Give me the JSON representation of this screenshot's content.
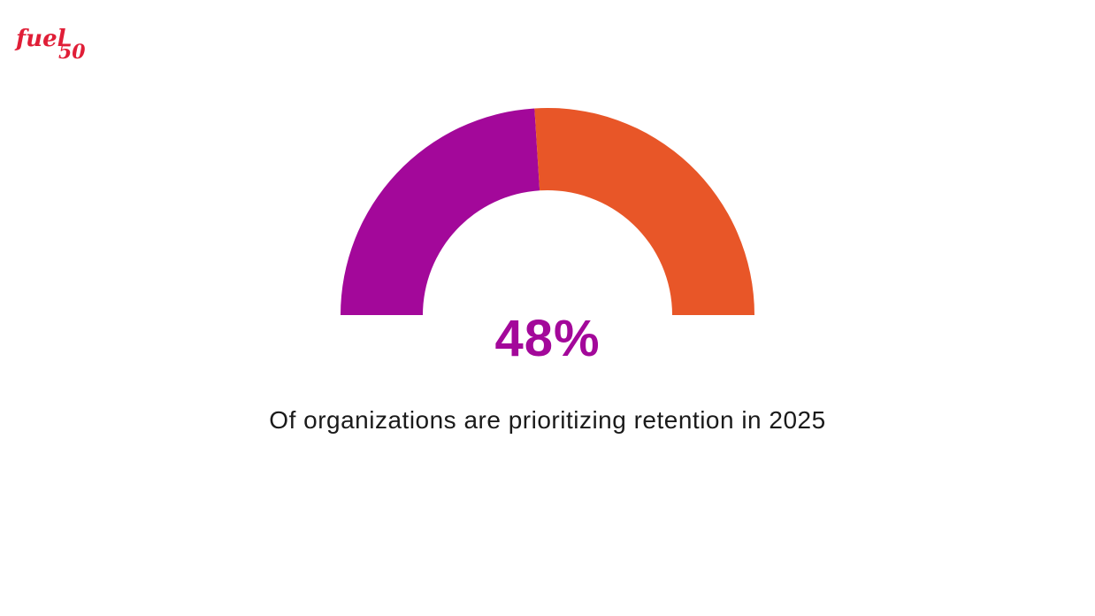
{
  "brand": {
    "logo_text_main": "fuel",
    "logo_text_number": "50",
    "logo_color": "#e01e37"
  },
  "chart_data": {
    "type": "pie",
    "subtype": "half-donut gauge",
    "value_percent": 48,
    "value_label": "48%",
    "caption": "Of organizations are prioritizing retention in 2025",
    "segments": [
      {
        "value": 48,
        "color": "#a3089a"
      },
      {
        "value": 52,
        "color": "#e85628"
      }
    ]
  },
  "colors": {
    "highlight": "#a3089a",
    "remainder": "#e85628",
    "text": "#1a1a1a",
    "background": "#ffffff"
  }
}
